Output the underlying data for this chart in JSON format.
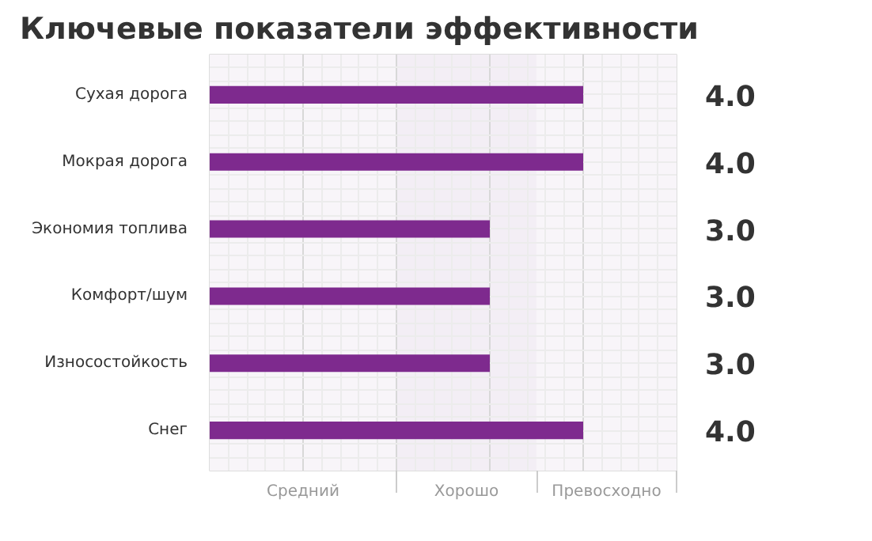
{
  "chart_data": {
    "type": "bar",
    "orientation": "horizontal",
    "title": "Ключевые показатели эффективности",
    "categories": [
      "Сухая дорога",
      "Мокрая дорога",
      "Экономия топлива",
      "Комфорт/шум",
      "Износостойкость",
      "Снег"
    ],
    "values": [
      4,
      4,
      3,
      3,
      3,
      4
    ],
    "value_labels": [
      "4.0",
      "4.0",
      "3.0",
      "3.0",
      "3.0",
      "4.0"
    ],
    "color": "#7e2a8e",
    "xlim": [
      0,
      5
    ],
    "bands": [
      {
        "axis": "x",
        "from": 0,
        "to": 2,
        "label": "Средний",
        "color": "#f8f5f9"
      },
      {
        "axis": "x",
        "from": 2,
        "to": 3.5,
        "label": "Хорошо",
        "color": "#f3eef5"
      },
      {
        "axis": "x",
        "from": 3.5,
        "to": 5,
        "label": "Превосходно",
        "color": "#f8f5f9"
      }
    ],
    "grid": true
  }
}
